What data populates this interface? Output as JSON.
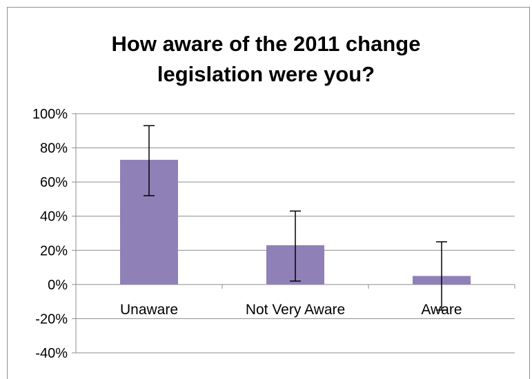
{
  "chart_data": {
    "type": "bar",
    "title_lines": [
      "How aware of the 2011 change",
      "legislation were you?"
    ],
    "categories": [
      "Unaware",
      "Not Very Aware",
      "Aware"
    ],
    "values": [
      0.73,
      0.23,
      0.05
    ],
    "error_high": [
      0.93,
      0.43,
      0.25
    ],
    "error_low": [
      0.52,
      0.02,
      -0.15
    ],
    "ylim": [
      -0.4,
      1.0
    ],
    "yticks": [
      1.0,
      0.8,
      0.6,
      0.4,
      0.2,
      0.0,
      -0.2,
      -0.4
    ],
    "ytick_labels": [
      "100%",
      "80%",
      "60%",
      "40%",
      "20%",
      "0%",
      "-20%",
      "-40%"
    ],
    "grid": true,
    "bar_color": "#9080b8",
    "grid_color": "#8c8c8c"
  }
}
